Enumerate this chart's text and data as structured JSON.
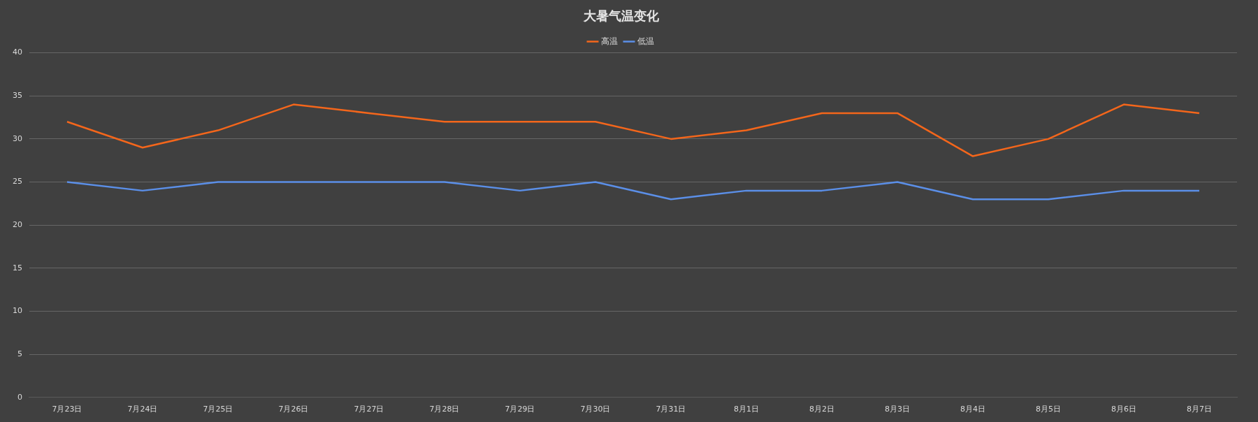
{
  "chart_data": {
    "type": "line",
    "title": "大暑气温变化",
    "categories": [
      "7月23日",
      "7月24日",
      "7月25日",
      "7月26日",
      "7月27日",
      "7月28日",
      "7月29日",
      "7月30日",
      "7月31日",
      "8月1日",
      "8月2日",
      "8月3日",
      "8月4日",
      "8月5日",
      "8月6日",
      "8月7日"
    ],
    "series": [
      {
        "name": "高温",
        "color": "#f4661b",
        "values": [
          32,
          29,
          31,
          34,
          33,
          32,
          32,
          32,
          30,
          31,
          33,
          33,
          28,
          30,
          34,
          33
        ]
      },
      {
        "name": "低温",
        "color": "#5b8fe8",
        "values": [
          25,
          24,
          25,
          25,
          25,
          25,
          24,
          25,
          23,
          24,
          24,
          25,
          23,
          23,
          24,
          24
        ]
      }
    ],
    "ylim": [
      0,
      40
    ],
    "yticks": [
      0,
      5,
      10,
      15,
      20,
      25,
      30,
      35,
      40
    ],
    "grid": "y",
    "legend": "top",
    "marker": "none",
    "line_style": "solid"
  }
}
